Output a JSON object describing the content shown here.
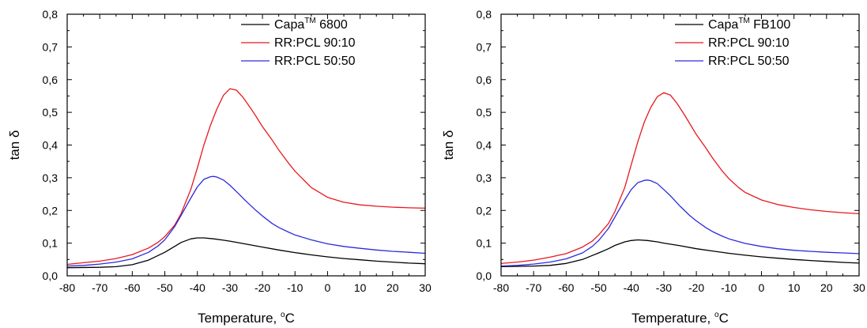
{
  "chart_data": [
    {
      "type": "line",
      "title": "",
      "xlabel": "Temperature, °C",
      "xlabel_main": "Temperature, ",
      "xlabel_sup": "o",
      "xlabel_end": "C",
      "ylabel": "tan δ",
      "xlim": [
        -80,
        30
      ],
      "ylim": [
        0.0,
        0.8
      ],
      "x_ticks": [
        "-80",
        "-70",
        "-60",
        "-50",
        "-40",
        "-30",
        "-20",
        "-10",
        "0",
        "10",
        "20",
        "30"
      ],
      "y_ticks": [
        "0,0",
        "0,1",
        "0,2",
        "0,3",
        "0,4",
        "0,5",
        "0,6",
        "0,7",
        "0,8"
      ],
      "grid": false,
      "legend_position": "top-right",
      "series": [
        {
          "name": "Capa™ 6800",
          "name_main": "Capa",
          "name_sup": "TM",
          "name_end": " 6800",
          "color": "#000000",
          "x": [
            -80,
            -70,
            -65,
            -60,
            -55,
            -50,
            -47,
            -45,
            -42,
            -40,
            -38,
            -35,
            -32,
            -30,
            -25,
            -20,
            -15,
            -10,
            -5,
            0,
            5,
            10,
            15,
            20,
            25,
            30
          ],
          "y": [
            0.025,
            0.026,
            0.028,
            0.034,
            0.048,
            0.072,
            0.09,
            0.102,
            0.113,
            0.116,
            0.116,
            0.113,
            0.109,
            0.106,
            0.097,
            0.088,
            0.079,
            0.071,
            0.064,
            0.058,
            0.053,
            0.049,
            0.045,
            0.042,
            0.039,
            0.037
          ]
        },
        {
          "name": "RR:PCL 90:10",
          "color": "#e8181d",
          "x": [
            -80,
            -75,
            -70,
            -65,
            -60,
            -55,
            -52,
            -50,
            -47,
            -45,
            -42,
            -40,
            -38,
            -36,
            -34,
            -32,
            -30,
            -28,
            -26,
            -24,
            -22,
            -20,
            -17,
            -15,
            -12,
            -10,
            -7,
            -5,
            0,
            5,
            10,
            15,
            20,
            25,
            30
          ],
          "y": [
            0.035,
            0.04,
            0.045,
            0.053,
            0.065,
            0.085,
            0.103,
            0.12,
            0.155,
            0.19,
            0.265,
            0.33,
            0.4,
            0.46,
            0.51,
            0.552,
            0.572,
            0.568,
            0.546,
            0.518,
            0.488,
            0.456,
            0.415,
            0.385,
            0.345,
            0.32,
            0.29,
            0.27,
            0.24,
            0.225,
            0.217,
            0.213,
            0.21,
            0.208,
            0.207
          ]
        },
        {
          "name": "RR:PCL 50:50",
          "color": "#2b2bdf",
          "x": [
            -80,
            -75,
            -70,
            -65,
            -60,
            -55,
            -52,
            -50,
            -47,
            -45,
            -42,
            -40,
            -38,
            -36,
            -35,
            -34,
            -32,
            -30,
            -28,
            -25,
            -22,
            -20,
            -17,
            -15,
            -12,
            -10,
            -5,
            0,
            5,
            10,
            15,
            20,
            25,
            30
          ],
          "y": [
            0.03,
            0.032,
            0.036,
            0.042,
            0.052,
            0.072,
            0.092,
            0.11,
            0.15,
            0.185,
            0.238,
            0.272,
            0.295,
            0.303,
            0.304,
            0.302,
            0.293,
            0.277,
            0.258,
            0.228,
            0.2,
            0.183,
            0.16,
            0.148,
            0.134,
            0.125,
            0.11,
            0.098,
            0.09,
            0.084,
            0.079,
            0.075,
            0.072,
            0.069
          ]
        }
      ]
    },
    {
      "type": "line",
      "title": "",
      "xlabel": "Temperature, °C",
      "xlabel_main": "Temperature, ",
      "xlabel_sup": "o",
      "xlabel_end": "C",
      "ylabel": "tan δ",
      "xlim": [
        -80,
        30
      ],
      "ylim": [
        0.0,
        0.8
      ],
      "x_ticks": [
        "-80",
        "-70",
        "-60",
        "-50",
        "-40",
        "-30",
        "-20",
        "-10",
        "0",
        "10",
        "20",
        "30"
      ],
      "y_ticks": [
        "0,0",
        "0,1",
        "0,2",
        "0,3",
        "0,4",
        "0,5",
        "0,6",
        "0,7",
        "0,8"
      ],
      "grid": false,
      "legend_position": "top-right",
      "series": [
        {
          "name": "Capa™ FB100",
          "name_main": "Capa",
          "name_sup": "TM",
          "name_end": " FB100",
          "color": "#000000",
          "x": [
            -80,
            -70,
            -65,
            -60,
            -55,
            -52,
            -50,
            -47,
            -45,
            -42,
            -40,
            -38,
            -35,
            -32,
            -30,
            -25,
            -20,
            -15,
            -10,
            -5,
            0,
            5,
            10,
            15,
            20,
            25,
            30
          ],
          "y": [
            0.028,
            0.03,
            0.032,
            0.038,
            0.05,
            0.062,
            0.07,
            0.083,
            0.093,
            0.104,
            0.108,
            0.11,
            0.108,
            0.104,
            0.1,
            0.092,
            0.083,
            0.076,
            0.069,
            0.063,
            0.058,
            0.054,
            0.05,
            0.047,
            0.044,
            0.041,
            0.039
          ]
        },
        {
          "name": "RR:PCL 90:10",
          "color": "#e8181d",
          "x": [
            -80,
            -75,
            -70,
            -65,
            -60,
            -55,
            -52,
            -50,
            -47,
            -45,
            -42,
            -40,
            -38,
            -36,
            -34,
            -32,
            -30,
            -28,
            -26,
            -24,
            -22,
            -20,
            -17,
            -15,
            -12,
            -10,
            -7,
            -5,
            0,
            5,
            10,
            15,
            20,
            25,
            30
          ],
          "y": [
            0.038,
            0.042,
            0.048,
            0.057,
            0.068,
            0.088,
            0.106,
            0.125,
            0.16,
            0.197,
            0.27,
            0.34,
            0.41,
            0.47,
            0.515,
            0.548,
            0.56,
            0.553,
            0.528,
            0.498,
            0.465,
            0.432,
            0.39,
            0.36,
            0.32,
            0.297,
            0.27,
            0.255,
            0.232,
            0.218,
            0.209,
            0.202,
            0.197,
            0.193,
            0.19
          ]
        },
        {
          "name": "RR:PCL 50:50",
          "color": "#2b2bdf",
          "x": [
            -80,
            -75,
            -70,
            -65,
            -60,
            -55,
            -52,
            -50,
            -47,
            -45,
            -42,
            -40,
            -38,
            -36,
            -35,
            -34,
            -32,
            -30,
            -28,
            -25,
            -22,
            -20,
            -17,
            -15,
            -12,
            -10,
            -5,
            0,
            5,
            10,
            15,
            20,
            25,
            30
          ],
          "y": [
            0.03,
            0.032,
            0.036,
            0.042,
            0.052,
            0.07,
            0.09,
            0.108,
            0.145,
            0.18,
            0.232,
            0.264,
            0.285,
            0.292,
            0.293,
            0.291,
            0.282,
            0.264,
            0.245,
            0.213,
            0.184,
            0.168,
            0.147,
            0.135,
            0.121,
            0.113,
            0.099,
            0.09,
            0.083,
            0.078,
            0.075,
            0.072,
            0.07,
            0.068
          ]
        }
      ]
    }
  ]
}
